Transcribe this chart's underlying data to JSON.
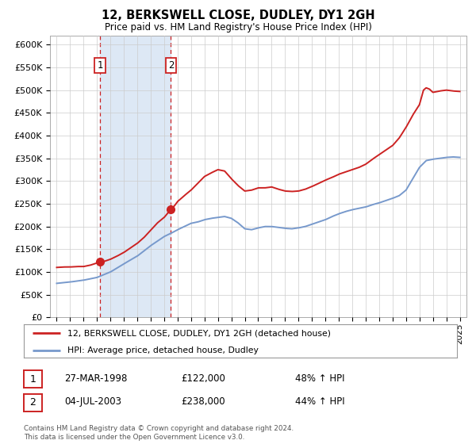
{
  "title": "12, BERKSWELL CLOSE, DUDLEY, DY1 2GH",
  "subtitle": "Price paid vs. HM Land Registry's House Price Index (HPI)",
  "legend_line1": "12, BERKSWELL CLOSE, DUDLEY, DY1 2GH (detached house)",
  "legend_line2": "HPI: Average price, detached house, Dudley",
  "purchase1_date": "27-MAR-1998",
  "purchase1_price": 122000,
  "purchase1_pct": "48% ↑ HPI",
  "purchase1_year": 1998.23,
  "purchase2_date": "04-JUL-2003",
  "purchase2_price": 238000,
  "purchase2_pct": "44% ↑ HPI",
  "purchase2_year": 2003.5,
  "footer": "Contains HM Land Registry data © Crown copyright and database right 2024.\nThis data is licensed under the Open Government Licence v3.0.",
  "hpi_color": "#7799cc",
  "price_color": "#cc2222",
  "shaded_color": "#dde8f5",
  "grid_color": "#cccccc",
  "ylim": [
    0,
    620000
  ],
  "yticks": [
    0,
    50000,
    100000,
    150000,
    200000,
    250000,
    300000,
    350000,
    400000,
    450000,
    500000,
    550000,
    600000
  ],
  "xlim": [
    1994.5,
    2025.5
  ],
  "xticks": [
    1995,
    1996,
    1997,
    1998,
    1999,
    2000,
    2001,
    2002,
    2003,
    2004,
    2005,
    2006,
    2007,
    2008,
    2009,
    2010,
    2011,
    2012,
    2013,
    2014,
    2015,
    2016,
    2017,
    2018,
    2019,
    2020,
    2021,
    2022,
    2023,
    2024,
    2025
  ]
}
